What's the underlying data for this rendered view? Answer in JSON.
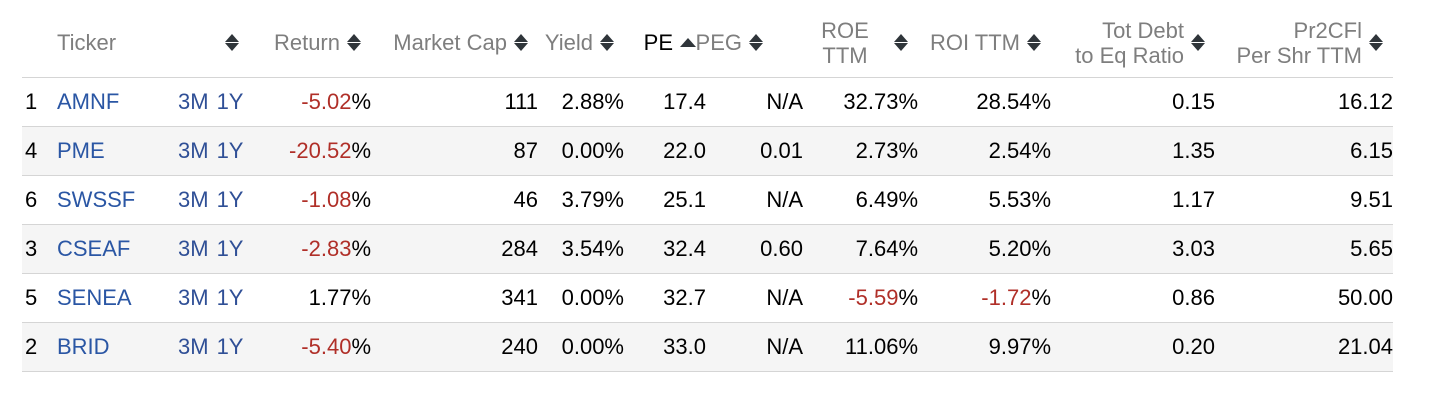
{
  "colors": {
    "header_text": "#7e7e7e",
    "header_active_text": "#000000",
    "ticker_link": "#2a56a4",
    "period_link": "#2f4f96",
    "negative_value": "#b02f28",
    "row_stripe": "#f5f5f5",
    "row_border": "#d5d5d5",
    "sort_icon": "#2f353a"
  },
  "symbols": {
    "percent": "%"
  },
  "header": {
    "ticker": {
      "label": "Ticker",
      "sort": "unsorted"
    },
    "return": {
      "label": "Return",
      "sort": "unsorted"
    },
    "market_cap": {
      "label": "Market Cap",
      "sort": "unsorted"
    },
    "yield": {
      "label": "Yield",
      "sort": "unsorted"
    },
    "pe": {
      "label": "PE",
      "sort": "ascending"
    },
    "peg": {
      "label": "PEG",
      "sort": "unsorted"
    },
    "roe_ttm": {
      "label": "ROE TTM",
      "sort": "unsorted"
    },
    "roi_ttm": {
      "label": "ROI TTM",
      "sort": "unsorted"
    },
    "tot_debt_to_eq": {
      "line1": "Tot Debt",
      "line2": "to Eq Ratio",
      "sort": "unsorted"
    },
    "pr2cfl_per_shr": {
      "line1": "Pr2CFl",
      "line2": "Per Shr TTM",
      "sort": "unsorted"
    }
  },
  "period_links": [
    "3M",
    "1Y"
  ],
  "rows": [
    {
      "rank": "1",
      "ticker": "AMNF",
      "return_value": "-5.02",
      "return_negative": true,
      "market_cap": "111",
      "yield": "2.88%",
      "pe": "17.4",
      "peg": "N/A",
      "roe_value": "32.73",
      "roe_negative": false,
      "roi_value": "28.54",
      "roi_negative": false,
      "debt_to_eq": "0.15",
      "pr2cfl_per_shr": "16.12"
    },
    {
      "rank": "4",
      "ticker": "PME",
      "return_value": "-20.52",
      "return_negative": true,
      "market_cap": "87",
      "yield": "0.00%",
      "pe": "22.0",
      "peg": "0.01",
      "roe_value": "2.73",
      "roe_negative": false,
      "roi_value": "2.54",
      "roi_negative": false,
      "debt_to_eq": "1.35",
      "pr2cfl_per_shr": "6.15"
    },
    {
      "rank": "6",
      "ticker": "SWSSF",
      "return_value": "-1.08",
      "return_negative": true,
      "market_cap": "46",
      "yield": "3.79%",
      "pe": "25.1",
      "peg": "N/A",
      "roe_value": "6.49",
      "roe_negative": false,
      "roi_value": "5.53",
      "roi_negative": false,
      "debt_to_eq": "1.17",
      "pr2cfl_per_shr": "9.51"
    },
    {
      "rank": "3",
      "ticker": "CSEAF",
      "return_value": "-2.83",
      "return_negative": true,
      "market_cap": "284",
      "yield": "3.54%",
      "pe": "32.4",
      "peg": "0.60",
      "roe_value": "7.64",
      "roe_negative": false,
      "roi_value": "5.20",
      "roi_negative": false,
      "debt_to_eq": "3.03",
      "pr2cfl_per_shr": "5.65"
    },
    {
      "rank": "5",
      "ticker": "SENEA",
      "return_value": "1.77",
      "return_negative": false,
      "market_cap": "341",
      "yield": "0.00%",
      "pe": "32.7",
      "peg": "N/A",
      "roe_value": "-5.59",
      "roe_negative": true,
      "roi_value": "-1.72",
      "roi_negative": true,
      "debt_to_eq": "0.86",
      "pr2cfl_per_shr": "50.00"
    },
    {
      "rank": "2",
      "ticker": "BRID",
      "return_value": "-5.40",
      "return_negative": true,
      "market_cap": "240",
      "yield": "0.00%",
      "pe": "33.0",
      "peg": "N/A",
      "roe_value": "11.06",
      "roe_negative": false,
      "roi_value": "9.97",
      "roi_negative": false,
      "debt_to_eq": "0.20",
      "pr2cfl_per_shr": "21.04"
    }
  ]
}
